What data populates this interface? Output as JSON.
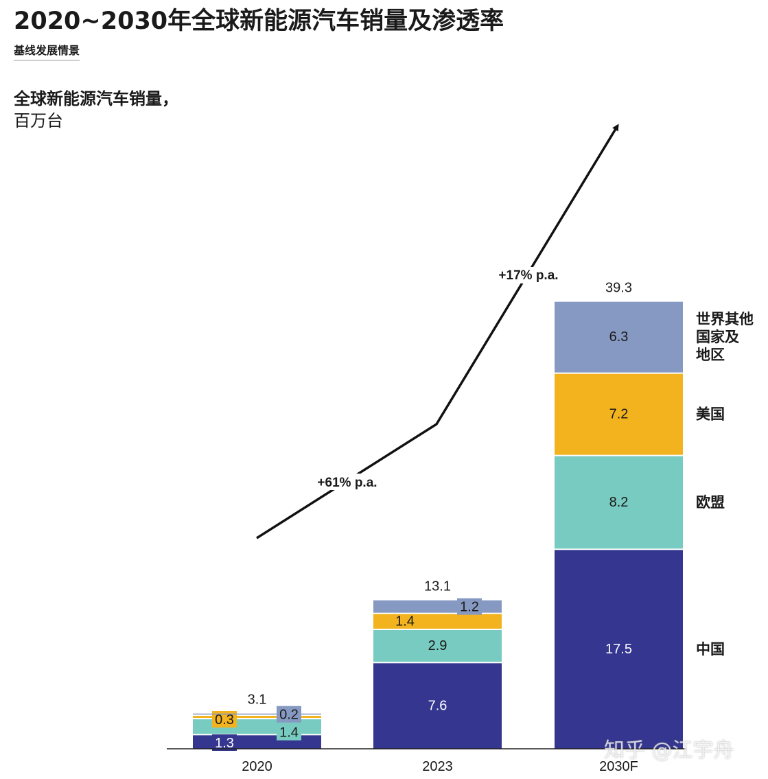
{
  "header": {
    "title": "2020~2030年全球新能源汽车销量及渗透率",
    "subtitle": "基线发展情景"
  },
  "chart_data": {
    "type": "bar",
    "stacked": true,
    "ylabel_line1": "全球新能源汽车销量，",
    "ylabel_line2": "百万台",
    "categories": [
      "2020",
      "2023",
      "2030F"
    ],
    "totals": [
      3.1,
      13.1,
      39.3
    ],
    "total_labels": [
      "3.1",
      "13.1",
      "39.3"
    ],
    "series": [
      {
        "name": "中国",
        "color": "#34368f",
        "text_color": "#ffffff",
        "values": [
          1.3,
          7.6,
          17.5
        ],
        "labels": [
          "1.3",
          "7.6",
          "17.5"
        ]
      },
      {
        "name": "欧盟",
        "color": "#78cbc0",
        "text_color": "#1a1a1a",
        "values": [
          1.4,
          2.9,
          8.2
        ],
        "labels": [
          "1.4",
          "2.9",
          "8.2"
        ]
      },
      {
        "name": "美国",
        "color": "#f2b31e",
        "text_color": "#1a1a1a",
        "values": [
          0.3,
          1.4,
          7.2
        ],
        "labels": [
          "0.3",
          "1.4",
          "7.2"
        ]
      },
      {
        "name": "世界其他国家及地区",
        "name_lines": [
          "世界其他",
          "国家及",
          "地区"
        ],
        "color": "#8699c2",
        "text_color": "#1a1a1a",
        "values": [
          0.2,
          1.2,
          6.3
        ],
        "labels": [
          "0.2",
          "1.2",
          "6.3"
        ]
      }
    ],
    "growth_annotations": [
      {
        "label": "+61% p.a.",
        "from": "2020",
        "to": "2023"
      },
      {
        "label": "+17% p.a.",
        "from": "2023",
        "to": "2030F"
      }
    ],
    "ylim": [
      0,
      39.3
    ]
  },
  "watermark": "知乎 @江宇舟"
}
